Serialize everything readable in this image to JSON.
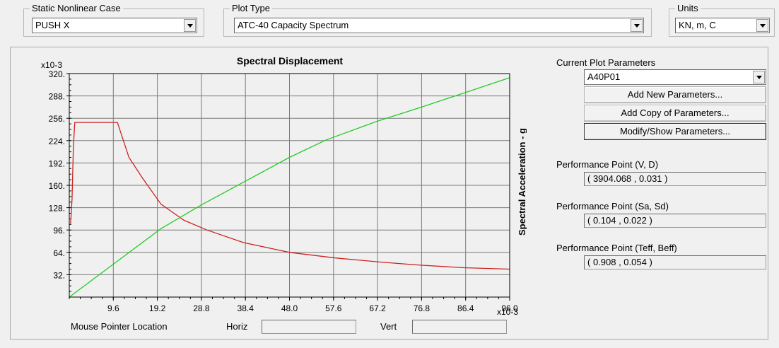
{
  "static_case": {
    "title": "Static Nonlinear Case",
    "value": "PUSH X"
  },
  "plot_type": {
    "title": "Plot Type",
    "value": "ATC-40 Capacity Spectrum"
  },
  "units": {
    "title": "Units",
    "value": "KN, m, C"
  },
  "right_panel": {
    "current_params_label": "Current Plot Parameters",
    "current_params_value": "A40P01",
    "add_new_label": "Add New Parameters...",
    "add_copy_label": "Add Copy of Parameters...",
    "modify_label": "Modify/Show Parameters...",
    "pp_vd_label": "Performance Point (V, D)",
    "pp_vd_value": "( 3904.068 , 0.031 )",
    "pp_sasd_label": "Performance Point (Sa, Sd)",
    "pp_sasd_value": "( 0.104 , 0.022 )",
    "pp_teff_label": "Performance Point (Teff, Beff)",
    "pp_teff_value": "( 0.908 , 0.054 )"
  },
  "mouse": {
    "label": "Mouse Pointer Location",
    "horiz_label": "Horiz",
    "vert_label": "Vert"
  },
  "chart_data": {
    "type": "line",
    "title": "Spectral Displacement",
    "ylabel": "Spectral Acceleration - g",
    "xlabel": "",
    "x_multiplier": "x10-3",
    "y_multiplier": "x10-3",
    "xlim": [
      0,
      96.0
    ],
    "ylim": [
      0,
      320
    ],
    "x_ticks": [
      "9.6",
      "19.2",
      "28.8",
      "38.4",
      "48.0",
      "57.6",
      "67.2",
      "76.8",
      "86.4",
      "96.0"
    ],
    "y_ticks": [
      "32.",
      "64.",
      "96.",
      "128.",
      "160.",
      "192.",
      "224.",
      "256.",
      "288.",
      "320."
    ],
    "grid": true,
    "series": [
      {
        "color": "#cc2222",
        "points": [
          [
            0.3,
            105
          ],
          [
            0.6,
            140
          ],
          [
            0.9,
            215
          ],
          [
            1.2,
            250
          ],
          [
            10.5,
            250
          ],
          [
            13,
            200
          ],
          [
            16,
            170
          ],
          [
            20,
            133
          ],
          [
            25,
            110
          ],
          [
            30,
            96
          ],
          [
            38,
            78
          ],
          [
            48,
            64
          ],
          [
            58,
            56
          ],
          [
            68,
            50
          ],
          [
            76,
            46
          ],
          [
            86,
            42
          ],
          [
            96,
            40
          ]
        ]
      },
      {
        "color": "#22cc22",
        "points": [
          [
            0,
            0
          ],
          [
            10,
            49
          ],
          [
            20,
            98
          ],
          [
            28.8,
            132
          ],
          [
            38.4,
            166
          ],
          [
            48,
            200
          ],
          [
            56,
            225
          ],
          [
            67.2,
            252
          ],
          [
            76.8,
            272
          ],
          [
            86.4,
            293
          ],
          [
            96,
            314
          ]
        ]
      }
    ]
  }
}
